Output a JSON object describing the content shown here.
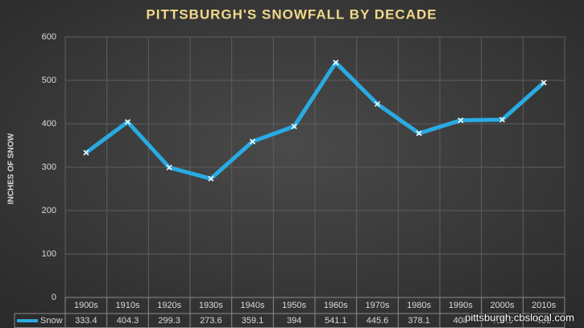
{
  "chart_data": {
    "type": "line",
    "title": "PITTSBURGH'S SNOWFALL BY DECADE",
    "y_label": "INCHES OF SNOW",
    "categories": [
      "1900s",
      "1910s",
      "1920s",
      "1930s",
      "1940s",
      "1950s",
      "1960s",
      "1970s",
      "1980s",
      "1990s",
      "2000s",
      "2010s"
    ],
    "series": [
      {
        "name": "Snow",
        "color": "#29abe2",
        "values": [
          333.4,
          404.3,
          299.3,
          273.6,
          359.1,
          394,
          541.1,
          445.6,
          378.1,
          408,
          409.5,
          495
        ]
      }
    ],
    "ylim": [
      0,
      600
    ],
    "yticks": [
      0,
      100,
      200,
      300,
      400,
      500,
      600
    ],
    "grid": true,
    "annotation": "pittsburgh.cbslocal.com"
  }
}
